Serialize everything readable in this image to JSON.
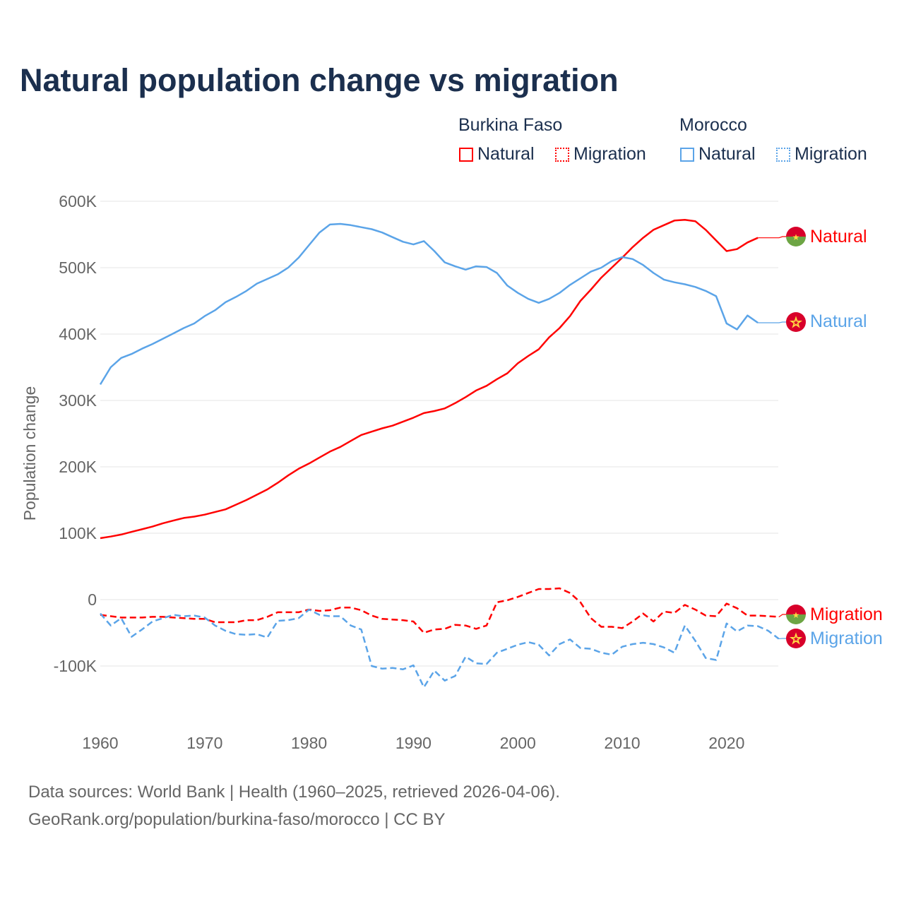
{
  "title": "Natural population change vs migration",
  "legend": {
    "groups": [
      {
        "country": "Burkina Faso",
        "items": [
          "Natural",
          "Migration"
        ],
        "color": "#ff0000"
      },
      {
        "country": "Morocco",
        "items": [
          "Natural",
          "Migration"
        ],
        "color": "#5ba4e8"
      }
    ]
  },
  "end_labels": {
    "bf_natural": "Natural",
    "ma_natural": "Natural",
    "bf_migration": "Migration",
    "ma_migration": "Migration"
  },
  "footer": {
    "line1": "Data sources: World Bank | Health (1960–2025, retrieved 2026-04-06).",
    "line2": "GeoRank.org/population/burkina-faso/morocco | CC BY"
  },
  "chart_data": {
    "type": "line",
    "title": "Natural population change vs migration",
    "xlabel": "",
    "ylabel": "Population change",
    "xlim": [
      1960,
      2025
    ],
    "ylim": [
      -150000,
      600000
    ],
    "x_ticks": [
      1960,
      1970,
      1980,
      1990,
      2000,
      2010,
      2020
    ],
    "x_tick_labels": [
      "1960",
      "1970",
      "1980",
      "1990",
      "2000",
      "2010",
      "2020"
    ],
    "y_ticks": [
      -100000,
      0,
      100000,
      200000,
      300000,
      400000,
      500000,
      600000
    ],
    "y_tick_labels": [
      "-100K",
      "0",
      "100K",
      "200K",
      "300K",
      "400K",
      "500K",
      "600K"
    ],
    "grid": true,
    "legend_position": "top-right",
    "series": [
      {
        "name": "Burkina Faso Natural",
        "color": "#ff0000",
        "dash": false,
        "start_year": 1960,
        "values": [
          92600,
          95000,
          98000,
          102000,
          106000,
          110000,
          115000,
          119000,
          123000,
          125000,
          128000,
          132000,
          136000,
          143000,
          150000,
          158000,
          166000,
          176000,
          187000,
          197000,
          205000,
          214000,
          223000,
          230000,
          239000,
          248000,
          253000,
          258000,
          262000,
          268000,
          274000,
          281000,
          284000,
          288000,
          296000,
          305000,
          315000,
          322000,
          332000,
          341000,
          356000,
          367000,
          377000,
          395000,
          409000,
          427000,
          450000,
          467000,
          485000,
          500000,
          515000,
          531000,
          545000,
          557000,
          564000,
          571000,
          572000,
          570000,
          557000,
          541000,
          525000,
          528000,
          538000,
          545000
        ]
      },
      {
        "name": "Burkina Faso Migration",
        "color": "#ff0000",
        "dash": true,
        "start_year": 1960,
        "values": [
          -23000,
          -25000,
          -27000,
          -27000,
          -27000,
          -26000,
          -26000,
          -27000,
          -28000,
          -29000,
          -29000,
          -34000,
          -34000,
          -34000,
          -31000,
          -31000,
          -26000,
          -19000,
          -19000,
          -19000,
          -15000,
          -17000,
          -16000,
          -12000,
          -12000,
          -16000,
          -24000,
          -29000,
          -30000,
          -31000,
          -33000,
          -50000,
          -45000,
          -44000,
          -38000,
          -39000,
          -44000,
          -39000,
          -4000,
          -1000,
          4000,
          10000,
          16000,
          16000,
          17000,
          10000,
          -4000,
          -28000,
          -41000,
          -41000,
          -43000,
          -33000,
          -21000,
          -33000,
          -18000,
          -20000,
          -8000,
          -15000,
          -24000,
          -25000,
          -6000,
          -13000,
          -24000,
          -24000,
          -25000,
          -26000
        ]
      },
      {
        "name": "Morocco Natural",
        "color": "#5ba4e8",
        "dash": false,
        "start_year": 1960,
        "values": [
          324000,
          350000,
          364000,
          370000,
          378000,
          385000,
          393000,
          401000,
          409000,
          416000,
          427000,
          436000,
          448000,
          456000,
          465000,
          476000,
          483000,
          490000,
          500000,
          515000,
          534000,
          553000,
          565000,
          566000,
          564000,
          561000,
          558000,
          553000,
          546000,
          539000,
          535000,
          540000,
          525000,
          508000,
          502000,
          497000,
          502000,
          501000,
          492000,
          473000,
          462000,
          453000,
          447000,
          453000,
          462000,
          474000,
          484000,
          494000,
          500000,
          510000,
          516000,
          513000,
          504000,
          492000,
          482000,
          478000,
          475000,
          471000,
          465000,
          457000,
          416000,
          407000,
          428000,
          417000
        ]
      },
      {
        "name": "Morocco Migration",
        "color": "#5ba4e8",
        "dash": true,
        "start_year": 1960,
        "values": [
          -21000,
          -39000,
          -28000,
          -56000,
          -45000,
          -33000,
          -28000,
          -23000,
          -25000,
          -24000,
          -27000,
          -39000,
          -47000,
          -52000,
          -53000,
          -52000,
          -57000,
          -32000,
          -31000,
          -28000,
          -15000,
          -23000,
          -25000,
          -25000,
          -39000,
          -45000,
          -100000,
          -104000,
          -103000,
          -105000,
          -99000,
          -132000,
          -107000,
          -122000,
          -115000,
          -86000,
          -96000,
          -97000,
          -80000,
          -74000,
          -68000,
          -64000,
          -68000,
          -84000,
          -67000,
          -60000,
          -73000,
          -74000,
          -80000,
          -83000,
          -71000,
          -67000,
          -65000,
          -67000,
          -72000,
          -80000,
          -39000,
          -62000,
          -88000,
          -91000,
          -36000,
          -48000,
          -39000,
          -40000,
          -47000,
          -59000
        ]
      }
    ]
  }
}
